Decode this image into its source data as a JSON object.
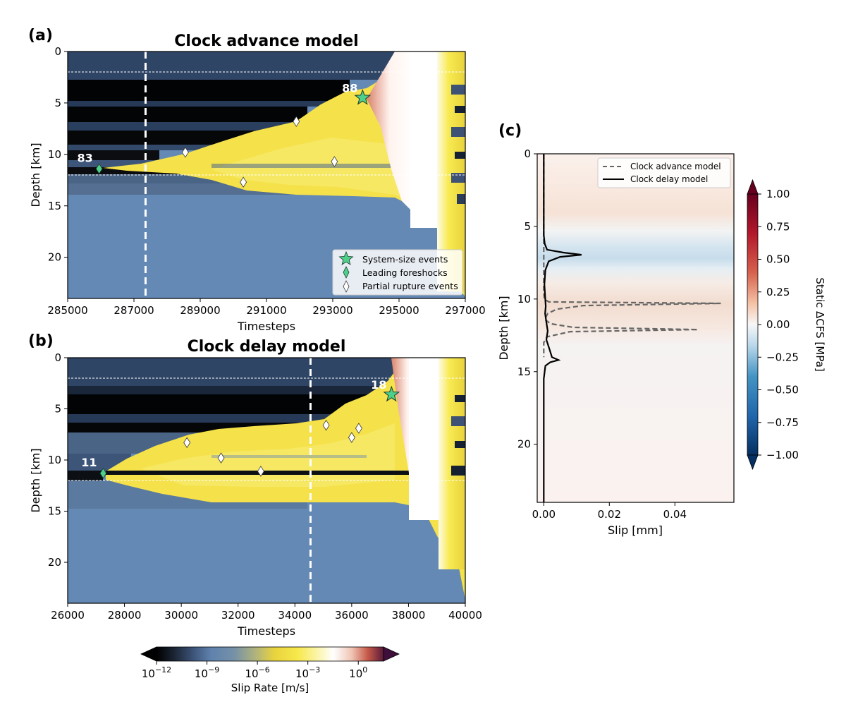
{
  "chart_data": [
    {
      "panel": "(a)",
      "type": "heatmap",
      "title": "Clock advance model",
      "xlabel": "Timesteps",
      "ylabel": "Depth [km]",
      "xlim": [
        285000,
        297000
      ],
      "ylim": [
        24,
        0
      ],
      "xticks": [
        "285000",
        "287000",
        "289000",
        "291000",
        "293000",
        "295000",
        "297000"
      ],
      "yticks": [
        "0",
        "5",
        "10",
        "15",
        "20"
      ],
      "reference_depths": [
        2,
        12
      ],
      "snapshot_time": 287350,
      "legend": {
        "placement": "lower-right",
        "entries": [
          "System-size events",
          "Leading foreshocks",
          "Partial rupture events"
        ]
      },
      "markers": [
        {
          "kind": "system",
          "x": 293900,
          "y": 4.5,
          "label": "88"
        },
        {
          "kind": "foreshock",
          "x": 285950,
          "y": 11.4,
          "label": "83"
        },
        {
          "kind": "partial",
          "x": 288550,
          "y": 9.8
        },
        {
          "kind": "partial",
          "x": 291900,
          "y": 6.8
        },
        {
          "kind": "partial",
          "x": 293050,
          "y": 10.7
        },
        {
          "kind": "partial",
          "x": 290300,
          "y": 12.7
        }
      ]
    },
    {
      "panel": "(b)",
      "type": "heatmap",
      "title": "Clock delay model",
      "xlabel": "Timesteps",
      "ylabel": "Depth [km]",
      "xlim": [
        26000,
        40000
      ],
      "ylim": [
        24,
        0
      ],
      "xticks": [
        "26000",
        "28000",
        "30000",
        "32000",
        "34000",
        "36000",
        "38000",
        "40000"
      ],
      "yticks": [
        "0",
        "5",
        "10",
        "15",
        "20"
      ],
      "reference_depths": [
        2,
        12
      ],
      "snapshot_time": 34550,
      "markers": [
        {
          "kind": "system",
          "x": 37400,
          "y": 3.6,
          "label": "18"
        },
        {
          "kind": "foreshock",
          "x": 27250,
          "y": 11.3,
          "label": "11"
        },
        {
          "kind": "partial",
          "x": 30200,
          "y": 8.3
        },
        {
          "kind": "partial",
          "x": 31400,
          "y": 9.8
        },
        {
          "kind": "partial",
          "x": 32800,
          "y": 11.1
        },
        {
          "kind": "partial",
          "x": 35100,
          "y": 6.6
        },
        {
          "kind": "partial",
          "x": 36000,
          "y": 7.8
        },
        {
          "kind": "partial",
          "x": 36250,
          "y": 6.9
        }
      ]
    },
    {
      "panel": "(c)",
      "type": "line",
      "xlabel": "Slip [mm]",
      "ylabel": "Depth [km]",
      "xlim": [
        -0.002,
        0.058
      ],
      "ylim": [
        24,
        0
      ],
      "xticks": [
        "0.00",
        "0.02",
        "0.04"
      ],
      "yticks": [
        "0",
        "5",
        "10",
        "15",
        "20"
      ],
      "legend": {
        "placement": "top-right"
      },
      "series": [
        {
          "name": "Clock advance model",
          "style": "dashed",
          "color": "#666666",
          "points": [
            [
              0.0,
              0
            ],
            [
              0.0,
              9.6
            ],
            [
              0.0002,
              10.0
            ],
            [
              0.0015,
              10.2
            ],
            [
              0.054,
              10.3
            ],
            [
              0.012,
              10.45
            ],
            [
              0.004,
              10.7
            ],
            [
              0.0012,
              11.0
            ],
            [
              0.0003,
              11.4
            ],
            [
              0.002,
              11.7
            ],
            [
              0.009,
              11.95
            ],
            [
              0.047,
              12.1
            ],
            [
              0.008,
              12.25
            ],
            [
              0.001,
              12.6
            ],
            [
              0.0,
              13.0
            ],
            [
              0.0,
              14.0
            ]
          ]
        },
        {
          "name": "Clock delay model",
          "style": "solid",
          "color": "#000000",
          "points": [
            [
              0.0,
              0
            ],
            [
              0.0,
              5.6
            ],
            [
              0.0003,
              6.2
            ],
            [
              0.001,
              6.6
            ],
            [
              0.006,
              6.8
            ],
            [
              0.0115,
              6.95
            ],
            [
              0.005,
              7.1
            ],
            [
              0.0015,
              7.4
            ],
            [
              0.0005,
              8.0
            ],
            [
              0.0002,
              9.0
            ],
            [
              0.0004,
              9.8
            ],
            [
              0.0006,
              10.5
            ],
            [
              0.0004,
              11.0
            ],
            [
              0.0008,
              11.6
            ],
            [
              0.0012,
              12.2
            ],
            [
              0.0008,
              12.8
            ],
            [
              0.0018,
              13.5
            ],
            [
              0.0025,
              14.0
            ],
            [
              0.0045,
              14.2
            ],
            [
              0.002,
              14.35
            ],
            [
              0.0005,
              14.6
            ],
            [
              0.0,
              15.5
            ],
            [
              0.0,
              24
            ]
          ]
        }
      ],
      "colorbar": {
        "label": "Static ΔCFS [MPa]",
        "range": [
          -1.0,
          1.0
        ],
        "ticks": [
          "1.00",
          "0.75",
          "0.50",
          "0.25",
          "0.00",
          "−0.25",
          "−0.50",
          "−0.75",
          "−1.00"
        ],
        "colormap": "diverging blue-white-red"
      }
    },
    {
      "type": "colorbar",
      "label": "Slip Rate [m/s]",
      "scale": "log",
      "range_exp": [
        -12,
        1.5
      ],
      "ticks": [
        {
          "base": "10",
          "exp": "−12"
        },
        {
          "base": "10",
          "exp": "−9"
        },
        {
          "base": "10",
          "exp": "−6"
        },
        {
          "base": "10",
          "exp": "−3"
        },
        {
          "base": "10",
          "exp": "0"
        }
      ],
      "colormap": "black-blue-yellow-white-red"
    }
  ]
}
